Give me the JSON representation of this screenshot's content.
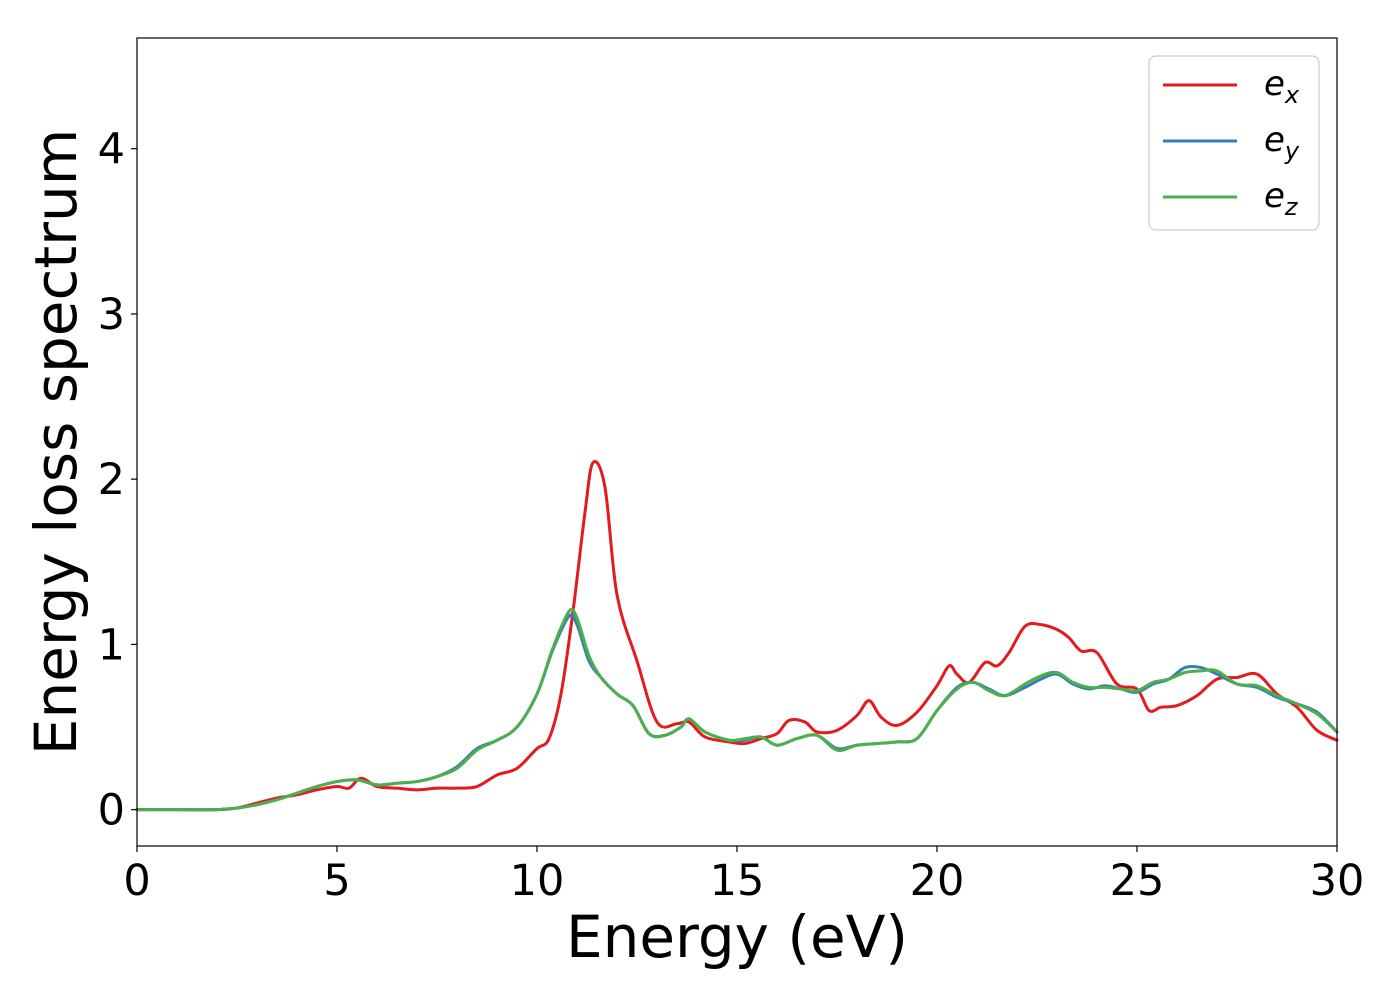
{
  "chart_data": {
    "type": "line",
    "xlabel": "Energy (eV)",
    "ylabel": "Energy loss spectrum",
    "xlim": [
      0,
      30
    ],
    "ylim": [
      -0.22,
      4.67
    ],
    "xticks": [
      0,
      5,
      10,
      15,
      20,
      25,
      30
    ],
    "xtick_labels": [
      "0",
      "5",
      "10",
      "15",
      "20",
      "25",
      "30"
    ],
    "yticks": [
      0,
      1,
      2,
      3,
      4
    ],
    "ytick_labels": [
      "0",
      "1",
      "2",
      "3",
      "4"
    ],
    "grid": false,
    "legend_position": "top-right",
    "series": [
      {
        "name": "e_x",
        "label_main": "e",
        "label_sub": "x",
        "color": "#e41a1c",
        "x": [
          0,
          1,
          2,
          2.5,
          3,
          3.5,
          4,
          4.5,
          5,
          5.3,
          5.6,
          6,
          6.5,
          7,
          7.5,
          8,
          8.5,
          9,
          9.5,
          10,
          10.3,
          10.6,
          10.9,
          11.2,
          11.4,
          11.7,
          12,
          12.5,
          13,
          13.5,
          13.8,
          14.2,
          14.8,
          15.2,
          15.6,
          16,
          16.3,
          16.7,
          17,
          17.5,
          18,
          18.3,
          18.6,
          19,
          19.5,
          20,
          20.3,
          20.5,
          20.8,
          21.2,
          21.5,
          21.8,
          22.2,
          22.6,
          23,
          23.3,
          23.6,
          24,
          24.5,
          25,
          25.3,
          25.6,
          26,
          26.5,
          27,
          27.5,
          28,
          28.5,
          29,
          29.5,
          30
        ],
        "y": [
          0,
          0,
          0,
          0.01,
          0.04,
          0.07,
          0.09,
          0.12,
          0.14,
          0.13,
          0.19,
          0.14,
          0.13,
          0.12,
          0.13,
          0.13,
          0.14,
          0.21,
          0.25,
          0.37,
          0.43,
          0.7,
          1.2,
          1.8,
          2.1,
          1.95,
          1.3,
          0.9,
          0.53,
          0.52,
          0.53,
          0.44,
          0.41,
          0.4,
          0.43,
          0.46,
          0.54,
          0.53,
          0.47,
          0.48,
          0.57,
          0.66,
          0.56,
          0.51,
          0.59,
          0.75,
          0.87,
          0.82,
          0.77,
          0.89,
          0.87,
          0.95,
          1.11,
          1.12,
          1.09,
          1.04,
          0.96,
          0.95,
          0.76,
          0.73,
          0.6,
          0.62,
          0.63,
          0.69,
          0.79,
          0.8,
          0.82,
          0.7,
          0.62,
          0.48,
          0.42
        ]
      },
      {
        "name": "e_y",
        "label_main": "e",
        "label_sub": "y",
        "color": "#377eb8",
        "x": [
          0,
          1,
          2,
          2.5,
          3,
          3.5,
          4,
          4.5,
          5,
          5.5,
          6,
          6.5,
          7,
          7.5,
          8,
          8.5,
          9,
          9.5,
          10,
          10.4,
          10.8,
          11,
          11.3,
          11.6,
          12,
          12.4,
          12.8,
          13.2,
          13.6,
          13.8,
          14.2,
          14.8,
          15.2,
          15.6,
          16,
          16.5,
          17,
          17.5,
          18,
          18.5,
          19,
          19.5,
          20,
          20.5,
          20.9,
          21.3,
          21.7,
          22.2,
          22.6,
          23,
          23.4,
          23.8,
          24.2,
          24.6,
          25,
          25.4,
          25.8,
          26.2,
          26.6,
          27,
          27.5,
          28,
          28.5,
          29,
          29.5,
          30
        ],
        "y": [
          0,
          0,
          0,
          0.01,
          0.03,
          0.06,
          0.1,
          0.14,
          0.17,
          0.18,
          0.15,
          0.16,
          0.17,
          0.2,
          0.26,
          0.37,
          0.42,
          0.5,
          0.7,
          0.97,
          1.17,
          1.12,
          0.9,
          0.8,
          0.7,
          0.63,
          0.46,
          0.45,
          0.5,
          0.55,
          0.47,
          0.42,
          0.42,
          0.44,
          0.39,
          0.43,
          0.45,
          0.37,
          0.39,
          0.4,
          0.41,
          0.43,
          0.6,
          0.74,
          0.77,
          0.73,
          0.69,
          0.74,
          0.79,
          0.82,
          0.76,
          0.73,
          0.75,
          0.73,
          0.71,
          0.76,
          0.79,
          0.86,
          0.86,
          0.82,
          0.76,
          0.74,
          0.68,
          0.64,
          0.59,
          0.47
        ]
      },
      {
        "name": "e_z",
        "label_main": "e",
        "label_sub": "z",
        "color": "#4daf4a",
        "x": [
          0,
          1,
          2,
          2.5,
          3,
          3.5,
          4,
          4.5,
          5,
          5.5,
          6,
          6.5,
          7,
          7.5,
          8,
          8.5,
          9,
          9.5,
          10,
          10.4,
          10.8,
          11,
          11.3,
          11.6,
          12,
          12.4,
          12.8,
          13.2,
          13.6,
          13.8,
          14.2,
          14.8,
          15.2,
          15.6,
          16,
          16.5,
          17,
          17.5,
          18,
          18.5,
          19,
          19.5,
          20,
          20.5,
          20.9,
          21.3,
          21.7,
          22.2,
          22.6,
          23,
          23.4,
          23.8,
          24.2,
          24.6,
          25,
          25.4,
          25.8,
          26.2,
          26.6,
          27,
          27.5,
          28,
          28.5,
          29,
          29.5,
          30
        ],
        "y": [
          0,
          0,
          0,
          0.01,
          0.03,
          0.06,
          0.1,
          0.14,
          0.17,
          0.18,
          0.15,
          0.16,
          0.17,
          0.2,
          0.25,
          0.36,
          0.42,
          0.5,
          0.7,
          0.98,
          1.2,
          1.16,
          0.93,
          0.8,
          0.7,
          0.63,
          0.46,
          0.45,
          0.5,
          0.55,
          0.47,
          0.42,
          0.43,
          0.44,
          0.39,
          0.43,
          0.45,
          0.36,
          0.39,
          0.4,
          0.41,
          0.43,
          0.6,
          0.73,
          0.77,
          0.72,
          0.69,
          0.76,
          0.81,
          0.83,
          0.77,
          0.74,
          0.74,
          0.73,
          0.72,
          0.77,
          0.79,
          0.83,
          0.84,
          0.84,
          0.76,
          0.75,
          0.69,
          0.64,
          0.58,
          0.47
        ]
      }
    ]
  }
}
